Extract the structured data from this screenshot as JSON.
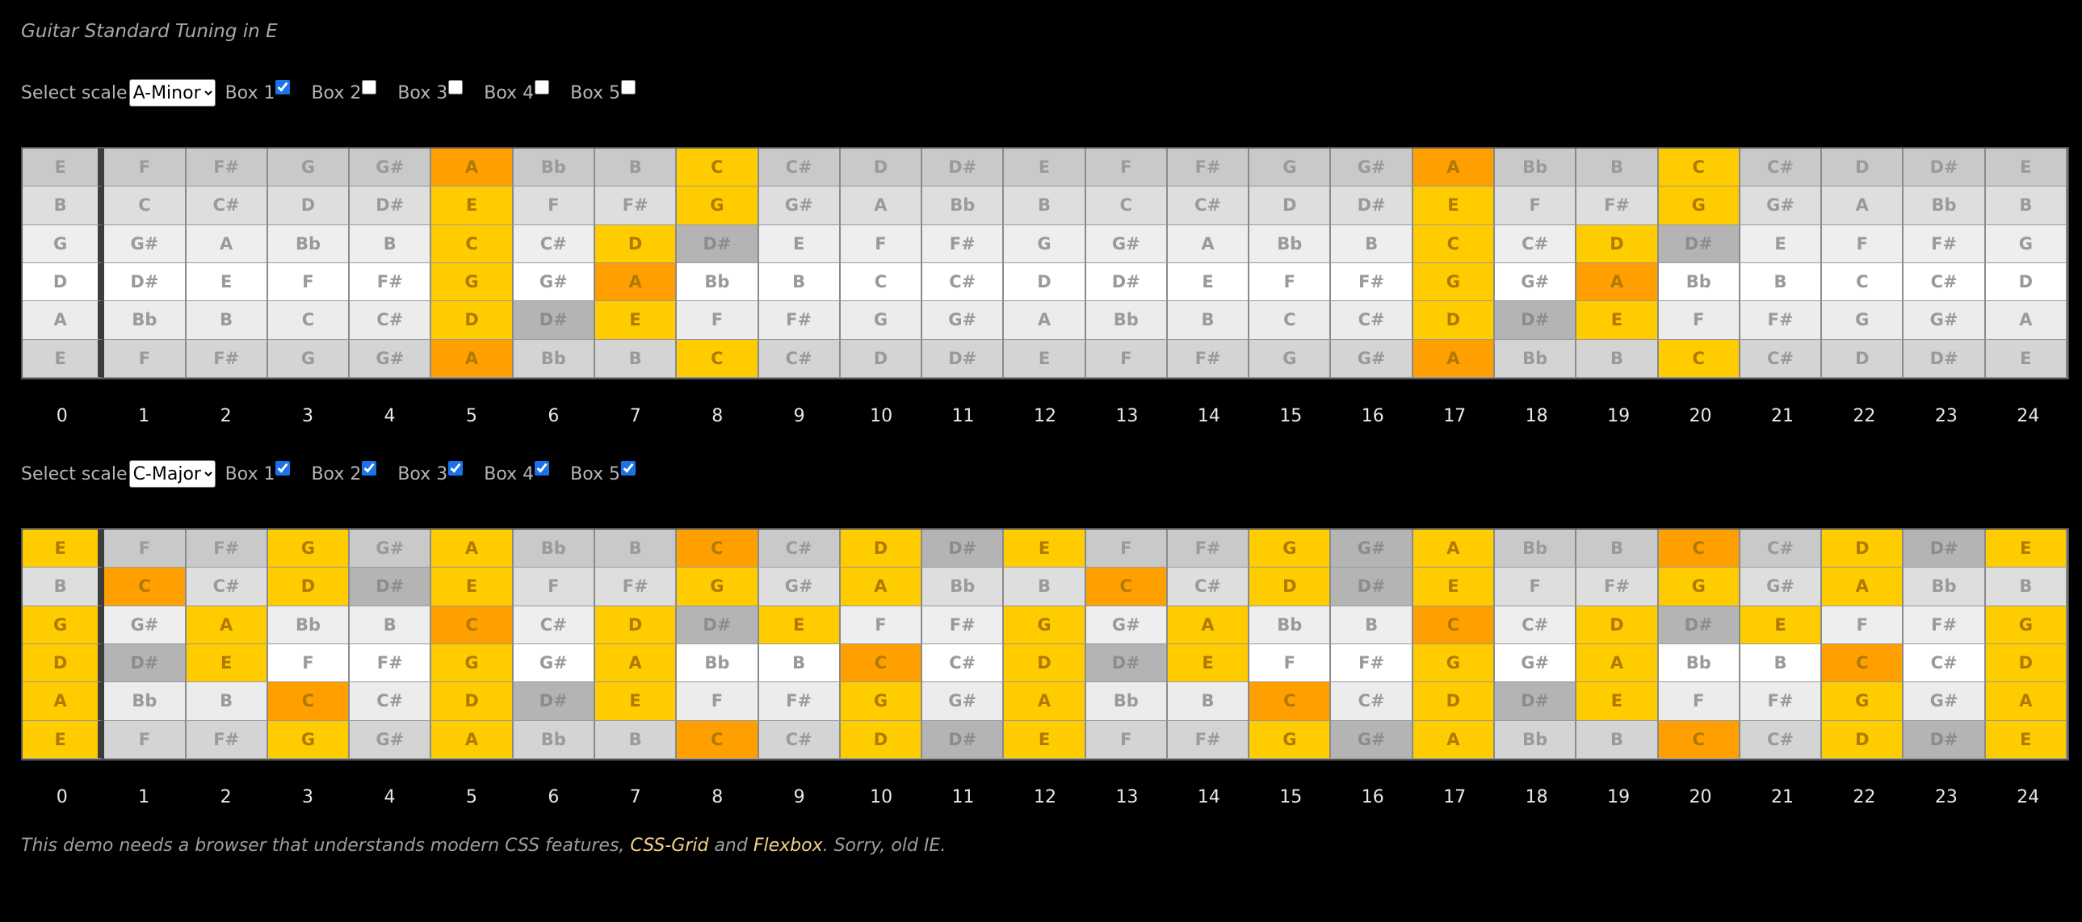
{
  "title": "Guitar Standard Tuning in E",
  "select_label": "Select scale",
  "box_labels": [
    "Box 1",
    "Box 2",
    "Box 3",
    "Box 4",
    "Box 5"
  ],
  "frets": [
    "0",
    "1",
    "2",
    "3",
    "4",
    "5",
    "6",
    "7",
    "8",
    "9",
    "10",
    "11",
    "12",
    "13",
    "14",
    "15",
    "16",
    "17",
    "18",
    "19",
    "20",
    "21",
    "22",
    "23",
    "24"
  ],
  "boards": [
    {
      "scale_options": [
        "A-Minor",
        "C-Major"
      ],
      "selected_scale": "A-Minor",
      "boxes_checked": [
        true,
        false,
        false,
        false,
        false
      ],
      "rows": [
        [
          "E",
          "F",
          "F#",
          "G",
          "G#",
          "A",
          "Bb",
          "B",
          "C",
          "C#",
          "D",
          "D#",
          "E",
          "F",
          "F#",
          "G",
          "G#",
          "A",
          "Bb",
          "B",
          "C",
          "C#",
          "D",
          "D#",
          "E"
        ],
        [
          "B",
          "C",
          "C#",
          "D",
          "D#",
          "E",
          "F",
          "F#",
          "G",
          "G#",
          "A",
          "Bb",
          "B",
          "C",
          "C#",
          "D",
          "D#",
          "E",
          "F",
          "F#",
          "G",
          "G#",
          "A",
          "Bb",
          "B"
        ],
        [
          "G",
          "G#",
          "A",
          "Bb",
          "B",
          "C",
          "C#",
          "D",
          "D#",
          "E",
          "F",
          "F#",
          "G",
          "G#",
          "A",
          "Bb",
          "B",
          "C",
          "C#",
          "D",
          "D#",
          "E",
          "F",
          "F#",
          "G"
        ],
        [
          "D",
          "D#",
          "E",
          "F",
          "F#",
          "G",
          "G#",
          "A",
          "Bb",
          "B",
          "C",
          "C#",
          "D",
          "D#",
          "E",
          "F",
          "F#",
          "G",
          "G#",
          "A",
          "Bb",
          "B",
          "C",
          "C#",
          "D"
        ],
        [
          "A",
          "Bb",
          "B",
          "C",
          "C#",
          "D",
          "D#",
          "E",
          "F",
          "F#",
          "G",
          "G#",
          "A",
          "Bb",
          "B",
          "C",
          "C#",
          "D",
          "D#",
          "E",
          "F",
          "F#",
          "G",
          "G#",
          "A"
        ],
        [
          "E",
          "F",
          "F#",
          "G",
          "G#",
          "A",
          "Bb",
          "B",
          "C",
          "C#",
          "D",
          "D#",
          "E",
          "F",
          "F#",
          "G",
          "G#",
          "A",
          "Bb",
          "B",
          "C",
          "C#",
          "D",
          "D#",
          "E"
        ]
      ],
      "highlights": [
        "..........................",
        ".....h..y........h..y.....",
        ".....h..y........h..y.....",
        ".....y.yd........y.yd.....",
        ".....y.h.........y.h......",
        ".....ydy.........ydy......",
        ".....h..y........h..y....."
      ]
    },
    {
      "scale_options": [
        "A-Minor",
        "C-Major"
      ],
      "selected_scale": "C-Major",
      "boxes_checked": [
        true,
        true,
        true,
        true,
        true
      ],
      "rows": [
        [
          "E",
          "F",
          "F#",
          "G",
          "G#",
          "A",
          "Bb",
          "B",
          "C",
          "C#",
          "D",
          "D#",
          "E",
          "F",
          "F#",
          "G",
          "G#",
          "A",
          "Bb",
          "B",
          "C",
          "C#",
          "D",
          "D#",
          "E"
        ],
        [
          "B",
          "C",
          "C#",
          "D",
          "D#",
          "E",
          "F",
          "F#",
          "G",
          "G#",
          "A",
          "Bb",
          "B",
          "C",
          "C#",
          "D",
          "D#",
          "E",
          "F",
          "F#",
          "G",
          "G#",
          "A",
          "Bb",
          "B"
        ],
        [
          "G",
          "G#",
          "A",
          "Bb",
          "B",
          "C",
          "C#",
          "D",
          "D#",
          "E",
          "F",
          "F#",
          "G",
          "G#",
          "A",
          "Bb",
          "B",
          "C",
          "C#",
          "D",
          "D#",
          "E",
          "F",
          "F#",
          "G"
        ],
        [
          "D",
          "D#",
          "E",
          "F",
          "F#",
          "G",
          "G#",
          "A",
          "Bb",
          "B",
          "C",
          "C#",
          "D",
          "D#",
          "E",
          "F",
          "F#",
          "G",
          "G#",
          "A",
          "Bb",
          "B",
          "C",
          "C#",
          "D"
        ],
        [
          "A",
          "Bb",
          "B",
          "C",
          "C#",
          "D",
          "D#",
          "E",
          "F",
          "F#",
          "G",
          "G#",
          "A",
          "Bb",
          "B",
          "C",
          "C#",
          "D",
          "D#",
          "E",
          "F",
          "F#",
          "G",
          "G#",
          "A"
        ],
        [
          "E",
          "F",
          "F#",
          "G",
          "G#",
          "A",
          "Bb",
          "B",
          "C",
          "C#",
          "D",
          "D#",
          "E",
          "F",
          "F#",
          "G",
          "G#",
          "A",
          "Bb",
          "B",
          "C",
          "C#",
          "D",
          "D#",
          "E"
        ]
      ],
      "highlights": [
        "..........................",
        "y..y.y..h.yde..y.yy.h.ydy",
        ".h.yd....y.y.y..h..ydy.y.h..ydy.",
        "y.y..h.yd.y.y.y..h.yd.y.y",
        "dy...y.y..h.y.dy...y.y..h.yd",
        "y..h.ydy.y.y..hy...yd.y.y",
        "y..y..y..h.y.dy..y.yy.h.ydy"
      ]
    }
  ],
  "footer": {
    "text_before": "This demo needs a browser that understands modern CSS features, ",
    "link1": "CSS-Grid",
    "text_mid": " and ",
    "link2": "Flexbox",
    "text_after": ". Sorry, old IE."
  },
  "colors": {
    "yellow": "#ffcc00",
    "orange": "#ff9f00",
    "dark_grey": "#b4b4b4"
  }
}
